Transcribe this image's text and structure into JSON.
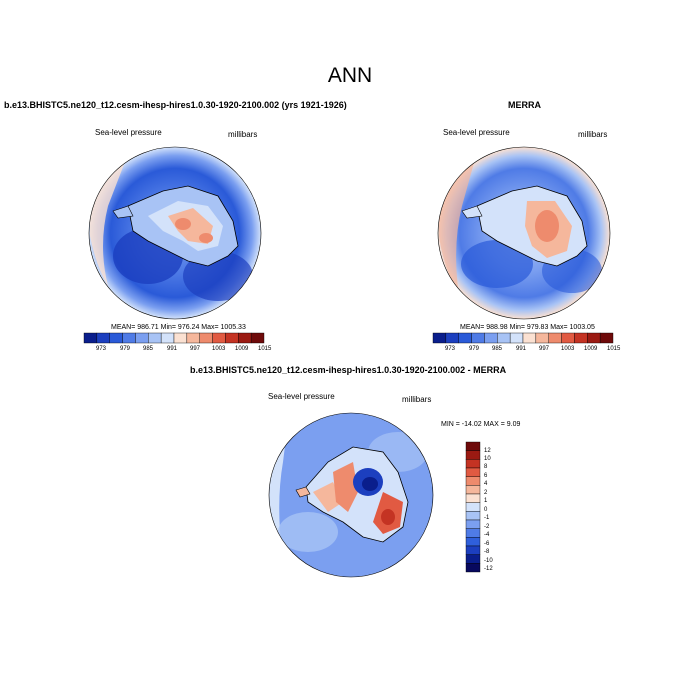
{
  "figure": {
    "title": "ANN"
  },
  "colors": {
    "abs_scale": [
      "#0a1e8c",
      "#1c3fbf",
      "#2a5ad8",
      "#4f7be6",
      "#7b9ff0",
      "#a8c3f5",
      "#d3e2fa",
      "#fbe1d2",
      "#f5b79c",
      "#ee8b6d",
      "#e15a42",
      "#c43323",
      "#9b1a12",
      "#6e0a0a"
    ],
    "diff_scale": [
      "#08095e",
      "#0a1e8c",
      "#1c3fbf",
      "#2f5fdb",
      "#4f7be6",
      "#7b9ff0",
      "#a8c3f5",
      "#d3e2fa",
      "#fbe1d2",
      "#f5b79c",
      "#ee8b6d",
      "#e15a42",
      "#c43323",
      "#9b1a12",
      "#6e0a0a"
    ]
  },
  "panels": {
    "model": {
      "title": "b.e13.BHISTC5.ne120_t12.cesm-ihesp-hires1.0.30-1920-2100.002 (yrs 1921-1926)",
      "variable": "Sea-level pressure",
      "units": "millibars",
      "stats": "MEAN= 986.71   Min= 976.24   Max= 1005.33"
    },
    "obs": {
      "title": "MERRA",
      "variable": "Sea-level pressure",
      "units": "millibars",
      "stats": "MEAN= 988.98   Min= 979.83   Max= 1003.05"
    },
    "diff": {
      "title": "b.e13.BHISTC5.ne120_t12.cesm-ihesp-hires1.0.30-1920-2100.002 - MERRA",
      "variable": "Sea-level pressure",
      "units": "millibars",
      "stats": "MIN = -14.02 MAX =   9.09"
    }
  },
  "chart_data": [
    {
      "type": "heatmap",
      "title": "b.e13.BHISTC5.ne120_t12.cesm-ihesp-hires1.0.30-1920-2100.002 (yrs 1921-1926)",
      "variable": "Sea-level pressure",
      "units": "millibars",
      "projection": "south polar stereographic",
      "colorbar_levels": [
        "973",
        "979",
        "985",
        "991",
        "997",
        "1003",
        "1009",
        "1015"
      ],
      "mean": 986.71,
      "min": 976.24,
      "max": 1005.33
    },
    {
      "type": "heatmap",
      "title": "MERRA",
      "variable": "Sea-level pressure",
      "units": "millibars",
      "projection": "south polar stereographic",
      "colorbar_levels": [
        "973",
        "979",
        "985",
        "991",
        "997",
        "1003",
        "1009",
        "1015"
      ],
      "mean": 988.98,
      "min": 979.83,
      "max": 1003.05
    },
    {
      "type": "heatmap",
      "title": "b.e13.BHISTC5.ne120_t12.cesm-ihesp-hires1.0.30-1920-2100.002 - MERRA",
      "variable": "Sea-level pressure",
      "units": "millibars",
      "projection": "south polar stereographic",
      "colorbar_levels": [
        "12",
        "10",
        "8",
        "6",
        "4",
        "2",
        "1",
        "0",
        "-1",
        "-2",
        "-4",
        "-6",
        "-8",
        "-10",
        "-12"
      ],
      "min": -14.02,
      "max": 9.09
    }
  ]
}
